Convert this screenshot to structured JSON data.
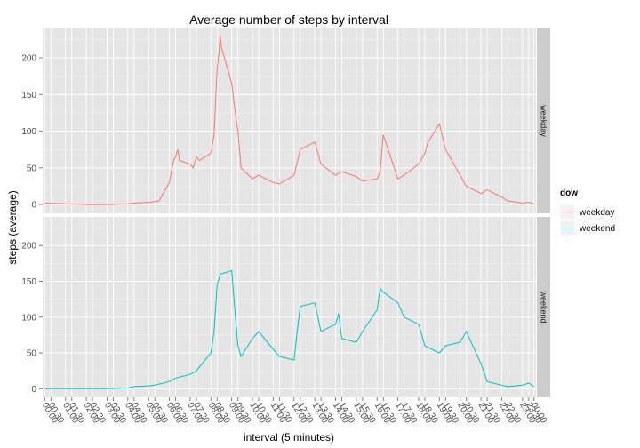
{
  "chart_data": {
    "type": "line",
    "title": "Average number of steps by interval",
    "xlabel": "interval (5 minutes)",
    "ylabel": "steps (average)",
    "ylim": [
      -12,
      240
    ],
    "yticks": [
      0,
      50,
      100,
      150,
      200
    ],
    "xlim": [
      -10,
      2365
    ],
    "x_ticks": [
      "00:00",
      "00:30",
      "01:00",
      "01:30",
      "02:00",
      "02:30",
      "03:00",
      "03:30",
      "04:00",
      "04:30",
      "05:00",
      "05:30",
      "06:00",
      "06:30",
      "07:00",
      "07:30",
      "08:00",
      "08:30",
      "09:00",
      "09:30",
      "10:00",
      "10:30",
      "11:00",
      "11:30",
      "12:00",
      "12:30",
      "13:00",
      "13:30",
      "14:00",
      "14:30",
      "15:00",
      "15:30",
      "16:00",
      "16:30",
      "17:00",
      "17:30",
      "18:00",
      "18:30",
      "19:00",
      "19:30",
      "20:00",
      "20:30",
      "21:00",
      "21:30",
      "22:00",
      "22:30",
      "23:00",
      "23:30",
      "00:00"
    ],
    "grid": true,
    "facets": [
      "weekday",
      "weekend"
    ],
    "legend": {
      "title": "dow",
      "position": "right",
      "entries": [
        "weekday",
        "weekend"
      ]
    },
    "series": [
      {
        "name": "weekday",
        "color": "#F8766D",
        "points": [
          [
            0,
            2
          ],
          [
            100,
            1
          ],
          [
            200,
            0
          ],
          [
            300,
            0
          ],
          [
            400,
            1
          ],
          [
            430,
            2
          ],
          [
            500,
            3
          ],
          [
            530,
            4
          ],
          [
            550,
            5
          ],
          [
            600,
            30
          ],
          [
            610,
            45
          ],
          [
            620,
            60
          ],
          [
            630,
            65
          ],
          [
            640,
            75
          ],
          [
            650,
            60
          ],
          [
            700,
            55
          ],
          [
            715,
            50
          ],
          [
            730,
            65
          ],
          [
            745,
            60
          ],
          [
            800,
            70
          ],
          [
            815,
            95
          ],
          [
            830,
            185
          ],
          [
            840,
            210
          ],
          [
            845,
            230
          ],
          [
            850,
            215
          ],
          [
            900,
            165
          ],
          [
            915,
            130
          ],
          [
            930,
            100
          ],
          [
            945,
            50
          ],
          [
            1000,
            35
          ],
          [
            1030,
            40
          ],
          [
            1100,
            30
          ],
          [
            1130,
            28
          ],
          [
            1200,
            40
          ],
          [
            1230,
            75
          ],
          [
            1300,
            85
          ],
          [
            1330,
            55
          ],
          [
            1400,
            40
          ],
          [
            1430,
            45
          ],
          [
            1500,
            38
          ],
          [
            1530,
            32
          ],
          [
            1600,
            35
          ],
          [
            1615,
            45
          ],
          [
            1630,
            95
          ],
          [
            1700,
            35
          ],
          [
            1730,
            40
          ],
          [
            1800,
            55
          ],
          [
            1830,
            70
          ],
          [
            1845,
            85
          ],
          [
            1900,
            110
          ],
          [
            1930,
            75
          ],
          [
            2000,
            40
          ],
          [
            2030,
            25
          ],
          [
            2100,
            15
          ],
          [
            2130,
            20
          ],
          [
            2200,
            10
          ],
          [
            2230,
            5
          ],
          [
            2300,
            2
          ],
          [
            2330,
            3
          ],
          [
            2355,
            1
          ]
        ]
      },
      {
        "name": "weekend",
        "color": "#00BFC4",
        "points": [
          [
            0,
            0
          ],
          [
            100,
            0
          ],
          [
            200,
            0
          ],
          [
            300,
            0
          ],
          [
            400,
            1
          ],
          [
            430,
            3
          ],
          [
            500,
            4
          ],
          [
            530,
            5
          ],
          [
            600,
            10
          ],
          [
            630,
            15
          ],
          [
            700,
            20
          ],
          [
            730,
            25
          ],
          [
            800,
            50
          ],
          [
            815,
            80
          ],
          [
            830,
            145
          ],
          [
            845,
            160
          ],
          [
            900,
            165
          ],
          [
            915,
            110
          ],
          [
            930,
            60
          ],
          [
            945,
            45
          ],
          [
            1000,
            70
          ],
          [
            1030,
            80
          ],
          [
            1100,
            55
          ],
          [
            1130,
            45
          ],
          [
            1200,
            40
          ],
          [
            1215,
            80
          ],
          [
            1230,
            115
          ],
          [
            1300,
            120
          ],
          [
            1315,
            100
          ],
          [
            1330,
            80
          ],
          [
            1400,
            90
          ],
          [
            1415,
            105
          ],
          [
            1430,
            70
          ],
          [
            1500,
            65
          ],
          [
            1530,
            80
          ],
          [
            1600,
            110
          ],
          [
            1615,
            140
          ],
          [
            1630,
            135
          ],
          [
            1700,
            120
          ],
          [
            1730,
            100
          ],
          [
            1800,
            90
          ],
          [
            1830,
            60
          ],
          [
            1900,
            50
          ],
          [
            1930,
            60
          ],
          [
            2000,
            65
          ],
          [
            2030,
            80
          ],
          [
            2045,
            70
          ],
          [
            2100,
            35
          ],
          [
            2130,
            10
          ],
          [
            2200,
            5
          ],
          [
            2230,
            3
          ],
          [
            2300,
            5
          ],
          [
            2330,
            8
          ],
          [
            2355,
            3
          ]
        ]
      }
    ]
  }
}
